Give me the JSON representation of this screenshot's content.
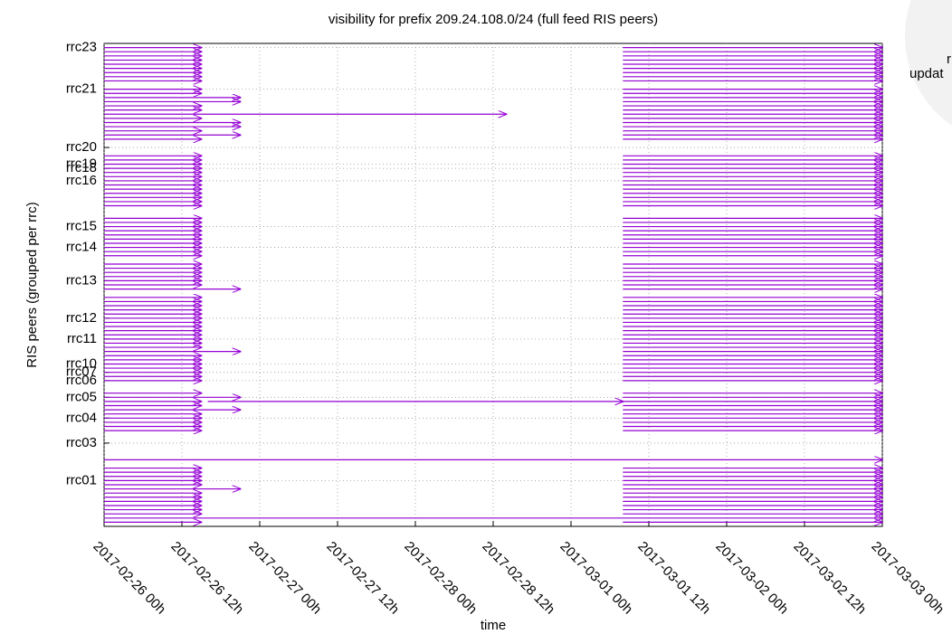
{
  "chart_data": {
    "type": "interval",
    "title": "visibility for prefix 209.24.108.0/24 (full feed RIS peers)",
    "xlabel": "time",
    "ylabel": "RIS peers (grouped per rrc)",
    "annotations": [
      "r",
      "updat"
    ],
    "color": "#9400d3",
    "grid": true,
    "xlim": [
      0,
      120
    ],
    "ylim": [
      0,
      116
    ],
    "xticks": [
      {
        "value": 0,
        "label": "2017-02-26 00h"
      },
      {
        "value": 12,
        "label": "2017-02-26 12h"
      },
      {
        "value": 24,
        "label": "2017-02-27 00h"
      },
      {
        "value": 36,
        "label": "2017-02-27 12h"
      },
      {
        "value": 48,
        "label": "2017-02-28 00h"
      },
      {
        "value": 60,
        "label": "2017-02-28 12h"
      },
      {
        "value": 72,
        "label": "2017-03-01 00h"
      },
      {
        "value": 84,
        "label": "2017-03-01 12h"
      },
      {
        "value": 96,
        "label": "2017-03-02 00h"
      },
      {
        "value": 108,
        "label": "2017-03-02 12h"
      },
      {
        "value": 120,
        "label": "2017-03-03 00h"
      }
    ],
    "yticks": [
      {
        "value": 11,
        "label": "rrc01"
      },
      {
        "value": 20,
        "label": "rrc03"
      },
      {
        "value": 26,
        "label": "rrc04"
      },
      {
        "value": 31,
        "label": "rrc05"
      },
      {
        "value": 35,
        "label": "rrc06"
      },
      {
        "value": 37,
        "label": "rrc07"
      },
      {
        "value": 39,
        "label": "rrc10"
      },
      {
        "value": 45,
        "label": "rrc11"
      },
      {
        "value": 50,
        "label": "rrc12"
      },
      {
        "value": 59,
        "label": "rrc13"
      },
      {
        "value": 67,
        "label": "rrc14"
      },
      {
        "value": 72,
        "label": "rrc15"
      },
      {
        "value": 83,
        "label": "rrc16"
      },
      {
        "value": 86,
        "label": "rrc18"
      },
      {
        "value": 87,
        "label": "rrc19"
      },
      {
        "value": 91,
        "label": "rrc20"
      },
      {
        "value": 105,
        "label": "rrc21"
      },
      {
        "value": 115,
        "label": "rrc23"
      }
    ],
    "peers": [
      {
        "y": 115,
        "intervals": [
          [
            0,
            15
          ],
          [
            80,
            120
          ]
        ]
      },
      {
        "y": 114,
        "intervals": [
          [
            0,
            15
          ],
          [
            80,
            120
          ]
        ]
      },
      {
        "y": 113,
        "intervals": [
          [
            0,
            15
          ],
          [
            80,
            120
          ]
        ]
      },
      {
        "y": 112,
        "intervals": [
          [
            0,
            15
          ],
          [
            80,
            120
          ]
        ]
      },
      {
        "y": 111,
        "intervals": [
          [
            0,
            15
          ],
          [
            80,
            120
          ]
        ]
      },
      {
        "y": 110,
        "intervals": [
          [
            0,
            15
          ],
          [
            80,
            120
          ]
        ]
      },
      {
        "y": 109,
        "intervals": [
          [
            0,
            15
          ],
          [
            80,
            120
          ]
        ]
      },
      {
        "y": 108,
        "intervals": [
          [
            0,
            15
          ],
          [
            80,
            120
          ]
        ]
      },
      {
        "y": 107,
        "intervals": [
          [
            0,
            15
          ],
          [
            80,
            120
          ]
        ]
      },
      {
        "y": 105,
        "intervals": [
          [
            0,
            15
          ],
          [
            80,
            120
          ]
        ]
      },
      {
        "y": 104,
        "intervals": [
          [
            0,
            15
          ],
          [
            80,
            120
          ]
        ]
      },
      {
        "y": 103,
        "intervals": [
          [
            0,
            21
          ],
          [
            80,
            120
          ]
        ]
      },
      {
        "y": 102,
        "intervals": [
          [
            0,
            21
          ],
          [
            80,
            120
          ]
        ]
      },
      {
        "y": 101,
        "intervals": [
          [
            0,
            15
          ],
          [
            80,
            120
          ]
        ]
      },
      {
        "y": 100,
        "intervals": [
          [
            0,
            15
          ],
          [
            80,
            120
          ]
        ]
      },
      {
        "y": 99,
        "intervals": [
          [
            0,
            62
          ],
          [
            80,
            120
          ]
        ]
      },
      {
        "y": 98,
        "intervals": [
          [
            0,
            15
          ],
          [
            80,
            120
          ]
        ]
      },
      {
        "y": 97,
        "intervals": [
          [
            0,
            21
          ],
          [
            80,
            120
          ]
        ]
      },
      {
        "y": 96,
        "intervals": [
          [
            0,
            21
          ],
          [
            80,
            120
          ]
        ]
      },
      {
        "y": 95,
        "intervals": [
          [
            0,
            15
          ],
          [
            80,
            120
          ]
        ]
      },
      {
        "y": 94,
        "intervals": [
          [
            0,
            21
          ],
          [
            80,
            120
          ]
        ]
      },
      {
        "y": 93,
        "intervals": [
          [
            0,
            15
          ],
          [
            80,
            120
          ]
        ]
      },
      {
        "y": 89,
        "intervals": [
          [
            0,
            15
          ],
          [
            80,
            120
          ]
        ]
      },
      {
        "y": 88,
        "intervals": [
          [
            0,
            15
          ],
          [
            80,
            120
          ]
        ]
      },
      {
        "y": 87,
        "intervals": [
          [
            0,
            15
          ],
          [
            80,
            120
          ]
        ]
      },
      {
        "y": 86,
        "intervals": [
          [
            0,
            15
          ],
          [
            80,
            120
          ]
        ]
      },
      {
        "y": 85,
        "intervals": [
          [
            0,
            15
          ],
          [
            80,
            120
          ]
        ]
      },
      {
        "y": 84,
        "intervals": [
          [
            0,
            15
          ],
          [
            80,
            120
          ]
        ]
      },
      {
        "y": 83,
        "intervals": [
          [
            0,
            15
          ],
          [
            80,
            120
          ]
        ]
      },
      {
        "y": 82,
        "intervals": [
          [
            0,
            15
          ],
          [
            80,
            120
          ]
        ]
      },
      {
        "y": 81,
        "intervals": [
          [
            0,
            15
          ],
          [
            80,
            120
          ]
        ]
      },
      {
        "y": 80,
        "intervals": [
          [
            0,
            15
          ],
          [
            80,
            120
          ]
        ]
      },
      {
        "y": 79,
        "intervals": [
          [
            0,
            15
          ],
          [
            80,
            120
          ]
        ]
      },
      {
        "y": 78,
        "intervals": [
          [
            0,
            15
          ],
          [
            80,
            120
          ]
        ]
      },
      {
        "y": 77,
        "intervals": [
          [
            0,
            15
          ],
          [
            80,
            120
          ]
        ]
      },
      {
        "y": 74,
        "intervals": [
          [
            0,
            15
          ],
          [
            80,
            120
          ]
        ]
      },
      {
        "y": 73,
        "intervals": [
          [
            0,
            15
          ],
          [
            80,
            120
          ]
        ]
      },
      {
        "y": 72,
        "intervals": [
          [
            0,
            15
          ],
          [
            80,
            120
          ]
        ]
      },
      {
        "y": 71,
        "intervals": [
          [
            0,
            15
          ],
          [
            80,
            120
          ]
        ]
      },
      {
        "y": 70,
        "intervals": [
          [
            0,
            15
          ],
          [
            80,
            120
          ]
        ]
      },
      {
        "y": 69,
        "intervals": [
          [
            0,
            15
          ],
          [
            80,
            120
          ]
        ]
      },
      {
        "y": 68,
        "intervals": [
          [
            0,
            15
          ],
          [
            80,
            120
          ]
        ]
      },
      {
        "y": 67,
        "intervals": [
          [
            0,
            15
          ],
          [
            80,
            120
          ]
        ]
      },
      {
        "y": 66,
        "intervals": [
          [
            0,
            15
          ],
          [
            80,
            120
          ]
        ]
      },
      {
        "y": 65,
        "intervals": [
          [
            0,
            15
          ],
          [
            80,
            120
          ]
        ]
      },
      {
        "y": 63,
        "intervals": [
          [
            0,
            15
          ],
          [
            80,
            120
          ]
        ]
      },
      {
        "y": 62,
        "intervals": [
          [
            0,
            15
          ],
          [
            80,
            120
          ]
        ]
      },
      {
        "y": 61,
        "intervals": [
          [
            0,
            15
          ],
          [
            80,
            120
          ]
        ]
      },
      {
        "y": 60,
        "intervals": [
          [
            0,
            15
          ],
          [
            80,
            120
          ]
        ]
      },
      {
        "y": 59,
        "intervals": [
          [
            0,
            15
          ],
          [
            80,
            120
          ]
        ]
      },
      {
        "y": 58,
        "intervals": [
          [
            0,
            15
          ],
          [
            80,
            120
          ]
        ]
      },
      {
        "y": 57,
        "intervals": [
          [
            0,
            21
          ],
          [
            80,
            120
          ]
        ]
      },
      {
        "y": 55,
        "intervals": [
          [
            0,
            15
          ],
          [
            80,
            120
          ]
        ]
      },
      {
        "y": 54,
        "intervals": [
          [
            0,
            15
          ],
          [
            80,
            120
          ]
        ]
      },
      {
        "y": 53,
        "intervals": [
          [
            0,
            15
          ],
          [
            80,
            120
          ]
        ]
      },
      {
        "y": 52,
        "intervals": [
          [
            0,
            15
          ],
          [
            80,
            120
          ]
        ]
      },
      {
        "y": 51,
        "intervals": [
          [
            0,
            15
          ],
          [
            80,
            120
          ]
        ]
      },
      {
        "y": 50,
        "intervals": [
          [
            0,
            15
          ],
          [
            80,
            120
          ]
        ]
      },
      {
        "y": 49,
        "intervals": [
          [
            0,
            15
          ],
          [
            80,
            120
          ]
        ]
      },
      {
        "y": 48,
        "intervals": [
          [
            0,
            15
          ],
          [
            80,
            120
          ]
        ]
      },
      {
        "y": 47,
        "intervals": [
          [
            0,
            15
          ],
          [
            80,
            120
          ]
        ]
      },
      {
        "y": 46,
        "intervals": [
          [
            0,
            15
          ],
          [
            80,
            120
          ]
        ]
      },
      {
        "y": 45,
        "intervals": [
          [
            0,
            15
          ],
          [
            80,
            120
          ]
        ]
      },
      {
        "y": 44,
        "intervals": [
          [
            0,
            15
          ],
          [
            80,
            120
          ]
        ]
      },
      {
        "y": 43,
        "intervals": [
          [
            0,
            15
          ],
          [
            80,
            120
          ]
        ]
      },
      {
        "y": 42,
        "intervals": [
          [
            0,
            21
          ],
          [
            80,
            120
          ]
        ]
      },
      {
        "y": 41,
        "intervals": [
          [
            0,
            15
          ],
          [
            80,
            120
          ]
        ]
      },
      {
        "y": 40,
        "intervals": [
          [
            0,
            15
          ],
          [
            80,
            120
          ]
        ]
      },
      {
        "y": 39,
        "intervals": [
          [
            0,
            15
          ],
          [
            80,
            120
          ]
        ]
      },
      {
        "y": 38,
        "intervals": [
          [
            0,
            15
          ],
          [
            80,
            120
          ]
        ]
      },
      {
        "y": 37,
        "intervals": [
          [
            0,
            15
          ],
          [
            80,
            120
          ]
        ]
      },
      {
        "y": 36,
        "intervals": [
          [
            0,
            15
          ],
          [
            80,
            120
          ]
        ]
      },
      {
        "y": 35,
        "intervals": [
          [
            0,
            15
          ],
          [
            80,
            120
          ]
        ]
      },
      {
        "y": 32,
        "intervals": [
          [
            0,
            15
          ],
          [
            80,
            120
          ]
        ]
      },
      {
        "y": 31,
        "intervals": [
          [
            0,
            21
          ],
          [
            80,
            120
          ]
        ]
      },
      {
        "y": 30,
        "intervals": [
          [
            0,
            15
          ],
          [
            16,
            80
          ],
          [
            80,
            120
          ]
        ]
      },
      {
        "y": 29,
        "intervals": [
          [
            0,
            15
          ],
          [
            80,
            120
          ]
        ]
      },
      {
        "y": 28,
        "intervals": [
          [
            0,
            21
          ],
          [
            80,
            120
          ]
        ]
      },
      {
        "y": 27,
        "intervals": [
          [
            0,
            15
          ],
          [
            80,
            120
          ]
        ]
      },
      {
        "y": 26,
        "intervals": [
          [
            0,
            15
          ],
          [
            80,
            120
          ]
        ]
      },
      {
        "y": 25,
        "intervals": [
          [
            0,
            15
          ],
          [
            80,
            120
          ]
        ]
      },
      {
        "y": 24,
        "intervals": [
          [
            0,
            15
          ],
          [
            80,
            120
          ]
        ]
      },
      {
        "y": 23,
        "intervals": [
          [
            0,
            15
          ],
          [
            80,
            120
          ]
        ]
      },
      {
        "y": 16,
        "intervals": [
          [
            0,
            120
          ]
        ]
      },
      {
        "y": 14,
        "intervals": [
          [
            0,
            15
          ],
          [
            80,
            120
          ]
        ]
      },
      {
        "y": 13,
        "intervals": [
          [
            0,
            15
          ],
          [
            80,
            120
          ]
        ]
      },
      {
        "y": 12,
        "intervals": [
          [
            0,
            15
          ],
          [
            80,
            120
          ]
        ]
      },
      {
        "y": 11,
        "intervals": [
          [
            0,
            15
          ],
          [
            80,
            120
          ]
        ]
      },
      {
        "y": 10,
        "intervals": [
          [
            0,
            15
          ],
          [
            80,
            120
          ]
        ]
      },
      {
        "y": 9,
        "intervals": [
          [
            0,
            21
          ],
          [
            80,
            120
          ]
        ]
      },
      {
        "y": 8,
        "intervals": [
          [
            0,
            15
          ],
          [
            80,
            120
          ]
        ]
      },
      {
        "y": 7,
        "intervals": [
          [
            0,
            15
          ],
          [
            80,
            120
          ]
        ]
      },
      {
        "y": 6,
        "intervals": [
          [
            0,
            15
          ],
          [
            80,
            120
          ]
        ]
      },
      {
        "y": 5,
        "intervals": [
          [
            0,
            15
          ],
          [
            80,
            120
          ]
        ]
      },
      {
        "y": 4,
        "intervals": [
          [
            0,
            15
          ],
          [
            80,
            120
          ]
        ]
      },
      {
        "y": 3,
        "intervals": [
          [
            0,
            15
          ],
          [
            80,
            120
          ]
        ]
      },
      {
        "y": 2,
        "intervals": [
          [
            0,
            120
          ]
        ]
      },
      {
        "y": 1,
        "intervals": [
          [
            0,
            15
          ],
          [
            80,
            120
          ]
        ]
      }
    ]
  }
}
